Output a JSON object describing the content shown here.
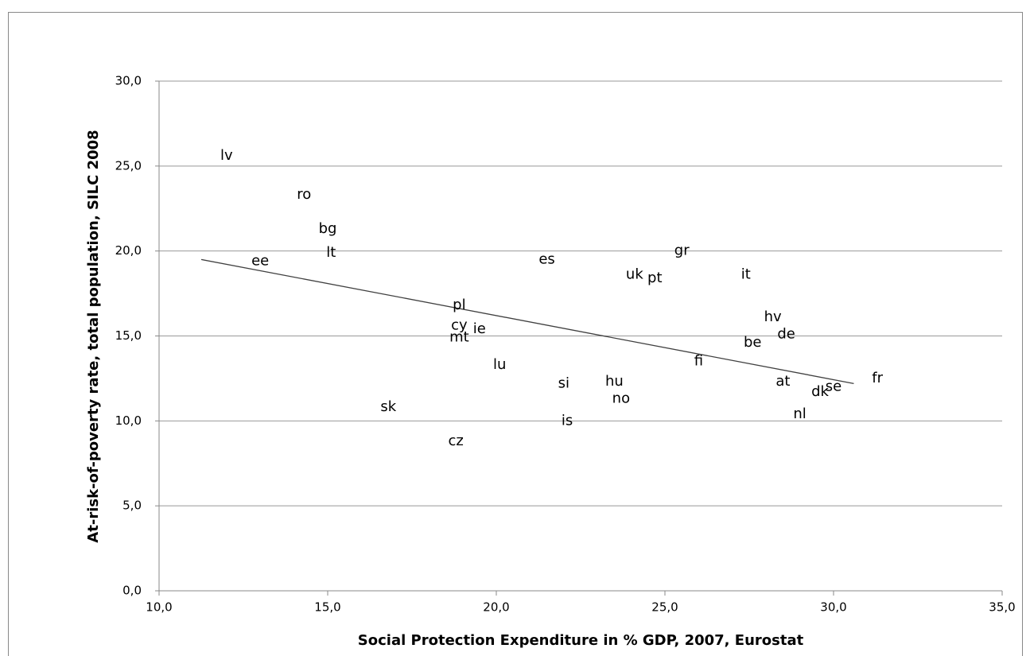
{
  "chart_data": {
    "type": "scatter",
    "x_label": "Social Protection Expenditure in % GDP, 2007, Eurostat",
    "y_label": "At-risk-of-poverty rate, total population, SILC 2008",
    "xlim": [
      10,
      35
    ],
    "ylim": [
      0,
      30
    ],
    "xticks": [
      {
        "value": 10,
        "label": "10,0"
      },
      {
        "value": 15,
        "label": "15,0"
      },
      {
        "value": 20,
        "label": "20,0"
      },
      {
        "value": 25,
        "label": "25,0"
      },
      {
        "value": 30,
        "label": "30,0"
      },
      {
        "value": 35,
        "label": "35,0"
      }
    ],
    "yticks": [
      {
        "value": 0,
        "label": "0,0"
      },
      {
        "value": 5,
        "label": "5,0"
      },
      {
        "value": 10,
        "label": "10,0"
      },
      {
        "value": 15,
        "label": "15,0"
      },
      {
        "value": 20,
        "label": "20,0"
      },
      {
        "value": 25,
        "label": "25,0"
      },
      {
        "value": 30,
        "label": "30,0"
      }
    ],
    "grid": true,
    "points": {
      "labels": [
        "lv",
        "ro",
        "bg",
        "lt",
        "ee",
        "es",
        "uk",
        "pt",
        "gr",
        "it",
        "pl",
        "cy",
        "ie",
        "mt",
        "hv",
        "de",
        "be",
        "fi",
        "lu",
        "si",
        "hu",
        "no",
        "at",
        "fr",
        "se",
        "dk",
        "nl",
        "sk",
        "is",
        "cz"
      ],
      "x": [
        12.0,
        14.3,
        15.0,
        15.1,
        13.0,
        21.5,
        24.1,
        24.7,
        25.5,
        27.4,
        18.9,
        18.9,
        19.5,
        18.9,
        28.2,
        28.6,
        27.6,
        26.0,
        20.1,
        22.0,
        23.5,
        23.7,
        28.5,
        31.3,
        30.0,
        29.6,
        29.0,
        16.8,
        22.1,
        18.8
      ],
      "y": [
        25.6,
        23.3,
        21.3,
        19.9,
        19.4,
        19.5,
        18.6,
        18.4,
        20.0,
        18.6,
        16.8,
        15.6,
        15.4,
        14.9,
        16.1,
        15.1,
        14.6,
        13.5,
        13.3,
        12.2,
        12.3,
        11.3,
        12.3,
        12.5,
        12.0,
        11.7,
        10.4,
        10.8,
        10.0,
        8.8
      ]
    },
    "trendline": {
      "x": [
        11.25,
        30.6
      ],
      "y": [
        19.5,
        12.2
      ],
      "color": "#404040"
    }
  }
}
